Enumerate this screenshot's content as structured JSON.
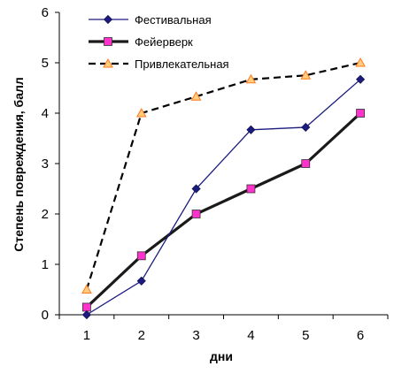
{
  "chart_data": {
    "type": "line",
    "title": "",
    "xlabel": "дни",
    "ylabel": "Степень повреждения, балл",
    "categories": [
      "1",
      "2",
      "3",
      "4",
      "5",
      "6"
    ],
    "x": [
      1,
      2,
      3,
      4,
      5,
      6
    ],
    "xlim": [
      0.5,
      6.5
    ],
    "ylim": [
      0,
      6
    ],
    "yticks": [
      0,
      1,
      2,
      3,
      4,
      5,
      6
    ],
    "grid": false,
    "legend_position": "top-left, inside plot area",
    "series": [
      {
        "name": "Фестивальная",
        "values": [
          0,
          0.67,
          2.5,
          3.67,
          3.72,
          4.67
        ],
        "color": "#1c1c80",
        "line_style": "solid-thin",
        "marker": "diamond",
        "marker_color": "#1c1c80"
      },
      {
        "name": "Фейерверк",
        "values": [
          0.15,
          1.17,
          2.0,
          2.5,
          3.0,
          4.0
        ],
        "color": "#1a1a1a",
        "line_style": "solid-thick",
        "marker": "square",
        "marker_color": "#ff33cc"
      },
      {
        "name": "Привлекательная",
        "values": [
          0.5,
          4.0,
          4.33,
          4.67,
          4.75,
          5.0
        ],
        "color": "#000000",
        "line_style": "dashed",
        "marker": "triangle",
        "marker_color": "#ffcc80"
      }
    ]
  }
}
